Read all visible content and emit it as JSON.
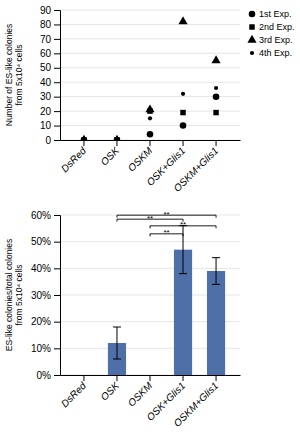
{
  "chart_data": [
    {
      "type": "scatter",
      "ylabel": "Number of ES-like colonies\nfrom 5x10⁴ cells",
      "categories": [
        "DsRed",
        "OSK",
        "OSKM",
        "OSK+Glis1",
        "OSKM+Glis1"
      ],
      "series": [
        {
          "name": "1st Exp.",
          "color": "#000000",
          "marker": "circle",
          "values": [
            0,
            0,
            4,
            10,
            30
          ]
        },
        {
          "name": "2nd Exp.",
          "color": "#000000",
          "marker": "square",
          "values": [
            0,
            0,
            20,
            19,
            19
          ]
        },
        {
          "name": "3rd Exp.",
          "color": "#000000",
          "marker": "triangle",
          "values": [
            0,
            0,
            21,
            82,
            55
          ]
        },
        {
          "name": "4th Exp.",
          "color": "#000000",
          "marker": "dot",
          "values": [
            0,
            0,
            15,
            32,
            36
          ]
        }
      ],
      "ylim": [
        0,
        90
      ],
      "yticks": [
        0,
        10,
        20,
        30,
        40,
        50,
        60,
        70,
        80,
        90
      ],
      "grid": true,
      "legend": "upper right"
    },
    {
      "type": "bar",
      "ylabel": "ES-like colonies/total colonies\nfrom 5x10⁴ cells",
      "categories": [
        "DsRed",
        "OSK",
        "OSKM",
        "OSK+Glis1",
        "OSKM+Glis1"
      ],
      "values": [
        0,
        12,
        0,
        47,
        39
      ],
      "errors": [
        0,
        6,
        0,
        9,
        5
      ],
      "color": "#4F6FA8",
      "ylim": [
        0,
        60
      ],
      "yticks": [
        {
          "value": 0,
          "label": "0%"
        },
        {
          "value": 10,
          "label": "10%"
        },
        {
          "value": 20,
          "label": "20%"
        },
        {
          "value": 30,
          "label": "30%"
        },
        {
          "value": 40,
          "label": "40%"
        },
        {
          "value": 50,
          "label": "50%"
        },
        {
          "value": 60,
          "label": "60%"
        }
      ],
      "grid": true,
      "annotations": [
        {
          "text": "**",
          "from": "OSKM",
          "to": "OSK+Glis1",
          "y": 52
        },
        {
          "text": "**",
          "from": "OSKM",
          "to": "OSKM+Glis1",
          "y": 55
        },
        {
          "text": "**",
          "from": "OSK",
          "to": "OSK+Glis1",
          "y": 57.5
        },
        {
          "text": "**",
          "from": "OSK",
          "to": "OSKM+Glis1",
          "y": 59
        }
      ]
    }
  ]
}
